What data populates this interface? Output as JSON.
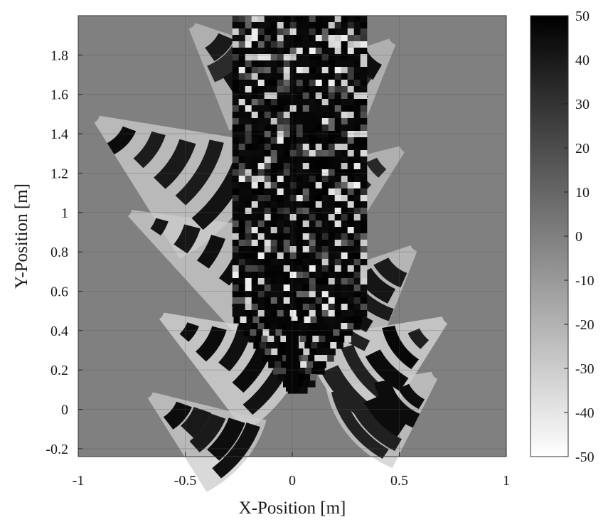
{
  "chart_data": {
    "type": "heatmap",
    "title": "",
    "xlabel": "X-Position [m]",
    "ylabel": "Y-Position [m]",
    "xlim": [
      -1,
      1
    ],
    "ylim": [
      -0.24,
      2.0
    ],
    "x_ticks": [
      -1,
      -0.5,
      0,
      0.5,
      1
    ],
    "x_tick_labels": [
      "-1",
      "-0.5",
      "0",
      "0.5",
      "1"
    ],
    "y_ticks": [
      -0.2,
      0,
      0.2,
      0.4,
      0.6,
      0.8,
      1,
      1.2,
      1.4,
      1.6,
      1.8
    ],
    "y_tick_labels": [
      "-0.2",
      "0",
      "0.2",
      "0.4",
      "0.6",
      "0.8",
      "1",
      "1.2",
      "1.4",
      "1.6",
      "1.8"
    ],
    "grid": true,
    "colormap": "gray-reversed",
    "background_value": 0,
    "colorbar": {
      "location": "right",
      "range": [
        -50,
        50
      ],
      "ticks": [
        50,
        40,
        30,
        20,
        10,
        0,
        -10,
        -20,
        -30,
        -40,
        -50
      ],
      "tick_labels": [
        "50",
        "40",
        "30",
        "20",
        "10",
        "0",
        "-10",
        "-20",
        "-30",
        "-40",
        "-50"
      ]
    },
    "colors": {
      "background_field": "#808080",
      "max_value": "#000000",
      "min_value": "#ffffff"
    },
    "band_groups": [
      {
        "cx": -0.95,
        "cy": 1.5,
        "r0": 0.05,
        "r1": 0.85,
        "a0": -60,
        "a1": -10,
        "w": 0.07,
        "v": 48,
        "fan_v": -30
      },
      {
        "cx": -0.8,
        "cy": 1.02,
        "r0": 0.05,
        "r1": 0.85,
        "a0": -50,
        "a1": -8,
        "w": 0.07,
        "v": 48,
        "fan_v": -30
      },
      {
        "cx": -0.65,
        "cy": 0.5,
        "r0": 0.05,
        "r1": 0.75,
        "a0": -55,
        "a1": -10,
        "w": 0.07,
        "v": 48,
        "fan_v": -35
      },
      {
        "cx": -0.7,
        "cy": 0.1,
        "r0": 0.05,
        "r1": 0.6,
        "a0": -60,
        "a1": -15,
        "w": 0.07,
        "v": 48,
        "fan_v": -30
      },
      {
        "cx": 0.75,
        "cy": 0.48,
        "r0": 0.05,
        "r1": 0.7,
        "a0": 190,
        "a1": 240,
        "w": 0.07,
        "v": 48,
        "fan_v": -35
      },
      {
        "cx": 0.7,
        "cy": 0.2,
        "r0": 0.05,
        "r1": 0.55,
        "a0": 190,
        "a1": 245,
        "w": 0.07,
        "v": 48,
        "fan_v": -30
      },
      {
        "cx": 0.55,
        "cy": 1.35,
        "r0": 0.05,
        "r1": 0.7,
        "a0": 195,
        "a1": 240,
        "w": 0.07,
        "v": 45,
        "fan_v": -25
      },
      {
        "cx": 0.5,
        "cy": 1.9,
        "r0": 0.05,
        "r1": 0.6,
        "a0": 200,
        "a1": 250,
        "w": 0.07,
        "v": 45,
        "fan_v": -25
      },
      {
        "cx": -0.5,
        "cy": 1.98,
        "r0": 0.05,
        "r1": 0.6,
        "a0": -70,
        "a1": -20,
        "w": 0.07,
        "v": 45,
        "fan_v": -25
      },
      {
        "cx": 0.6,
        "cy": 0.85,
        "r0": 0.05,
        "r1": 0.65,
        "a0": 200,
        "a1": 250,
        "w": 0.07,
        "v": 46,
        "fan_v": -28
      }
    ],
    "central_column": {
      "x_range": [
        -0.28,
        0.32
      ],
      "y_range": [
        0.1,
        2.0
      ],
      "v": 45
    }
  }
}
